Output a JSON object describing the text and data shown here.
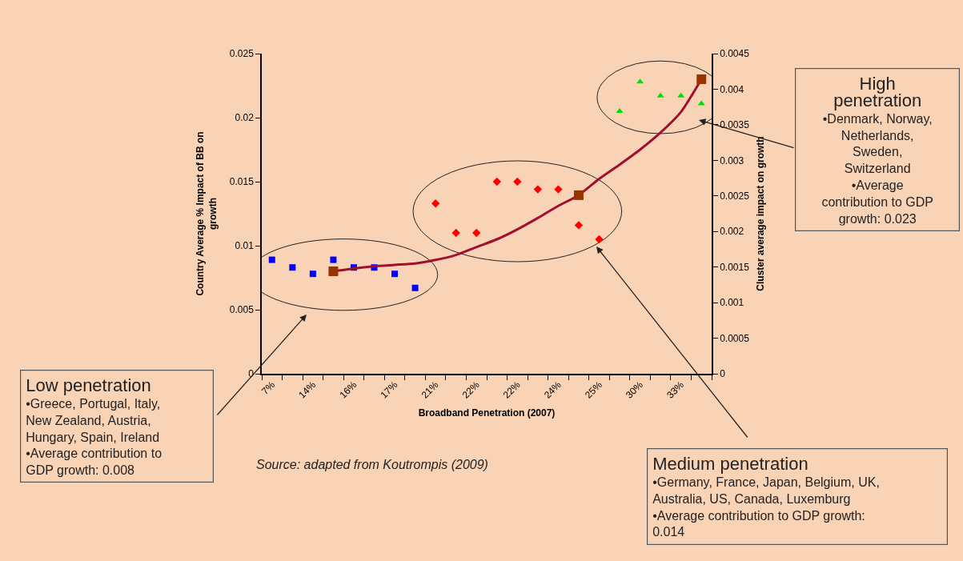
{
  "chart_data": {
    "type": "scatter",
    "xlabel": "Broadband Penetration (2007)",
    "ylabel": "Country Average % Impact of BB on growth",
    "y2label": "Cluster average impact on growth",
    "categories": [
      "7%",
      null,
      "14%",
      null,
      "16%",
      null,
      "17%",
      null,
      "21%",
      null,
      "22%",
      null,
      "22%",
      null,
      "24%",
      null,
      "25%",
      null,
      "30%",
      null,
      "33%",
      null
    ],
    "series": [
      {
        "marker": "square",
        "color": "#0000ff",
        "values": [
          0.0089,
          0.0083,
          0.0078,
          0.0089,
          0.0083,
          0.0083,
          0.0078,
          0.0067,
          null,
          null,
          null,
          null,
          null,
          null,
          null,
          null,
          null,
          null,
          null,
          null,
          null,
          null
        ]
      },
      {
        "marker": "diamond",
        "color": "#ff0000",
        "values": [
          null,
          null,
          null,
          null,
          null,
          null,
          null,
          null,
          0.0133,
          0.011,
          0.011,
          0.015,
          0.015,
          0.0144,
          0.0144,
          0.0116,
          0.0105,
          null,
          null,
          null,
          null,
          null
        ]
      },
      {
        "marker": "triangle",
        "color": "#00e000",
        "values": [
          null,
          null,
          null,
          null,
          null,
          null,
          null,
          null,
          null,
          null,
          null,
          null,
          null,
          null,
          null,
          null,
          null,
          0.0205,
          0.0228,
          0.0217,
          0.0217,
          0.0211
        ]
      },
      {
        "type": "line",
        "axis": "y2",
        "marker": "none",
        "line_style": "solid",
        "color": "#a0102e",
        "values": [
          null,
          null,
          null,
          0.00144,
          0.00148,
          0.00151,
          0.00153,
          0.00155,
          0.0016,
          0.00167,
          0.00178,
          0.00189,
          0.00203,
          0.00219,
          0.00236,
          0.00251,
          0.00274,
          0.00294,
          0.00315,
          0.00339,
          0.00368,
          0.00414
        ]
      },
      {
        "axis": "y2",
        "marker": "square",
        "color": "#993300",
        "values": [
          null,
          null,
          null,
          0.00144,
          null,
          null,
          null,
          null,
          null,
          null,
          null,
          null,
          null,
          null,
          null,
          0.00251,
          null,
          null,
          null,
          null,
          null,
          0.00414
        ]
      }
    ],
    "ylim": [
      0,
      0.025
    ],
    "yticks": [
      0,
      0.005,
      0.01,
      0.015,
      0.02,
      0.025
    ],
    "y2lim": [
      0,
      0.0045
    ],
    "y2ticks": [
      0,
      0.0005,
      0.001,
      0.0015,
      0.002,
      0.0025,
      0.003,
      0.0035,
      0.004,
      0.0045
    ],
    "grid": false,
    "annotations": [
      "Low penetration\n•Greece, Portugal, Italy,\nNew Zealand, Austria,\nHungary, Spain, Ireland\n•Average contribution to\nGDP growth: 0.008",
      "Medium penetration\n•Germany, France, Japan, Belgium, UK,\nAustralia, US, Canada, Luxemburg\n•Average contribution to GDP growth:\n0.014",
      "High\npenetration\n•Denmark, Norway,\nNetherlands,\nSweden,\nSwitzerland\n•Average\ncontribution to GDP\ngrowth: 0.023",
      "Source: adapted from Koutrompis (2009)"
    ]
  }
}
